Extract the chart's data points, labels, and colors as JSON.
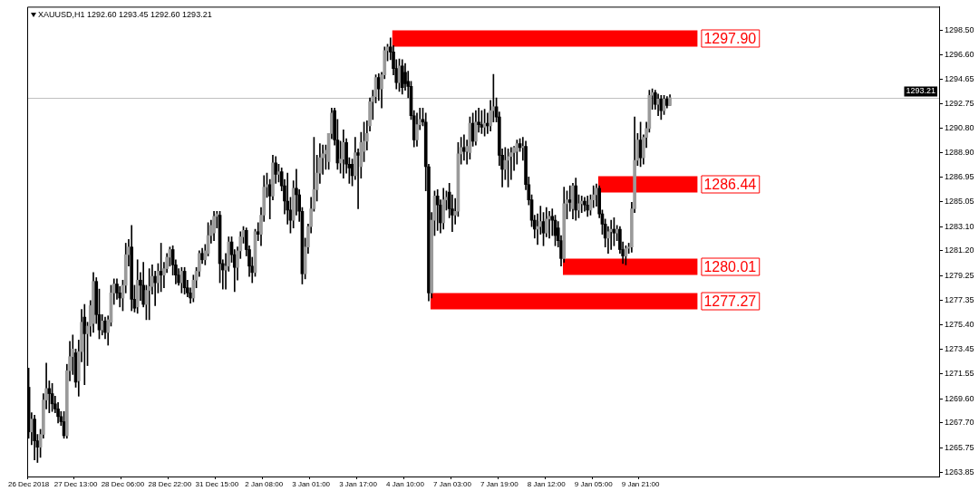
{
  "chart_data": {
    "type": "candlestick",
    "title": "XAUUSD,H1 1292.60 1293.45 1292.60 1293.21",
    "categories": [
      "26 Dec 2018",
      null,
      null,
      null,
      null,
      null,
      null,
      null,
      null,
      null,
      null,
      null,
      null,
      null,
      null,
      null,
      "27 Dec 13:00",
      null,
      null,
      null,
      null,
      null,
      null,
      null,
      null,
      null,
      null,
      null,
      null,
      null,
      null,
      null,
      "28 Dec 06:00",
      null,
      null,
      null,
      null,
      null,
      null,
      null,
      null,
      null,
      null,
      null,
      null,
      null,
      null,
      null,
      "28 Dec 22:00",
      null,
      null,
      null,
      null,
      null,
      null,
      null,
      null,
      null,
      null,
      null,
      null,
      null,
      null,
      null,
      "31 Dec 15:00",
      null,
      null,
      null,
      null,
      null,
      null,
      null,
      null,
      null,
      null,
      null,
      null,
      null,
      null,
      null,
      "2 Jan 08:00",
      null,
      null,
      null,
      null,
      null,
      null,
      null,
      null,
      null,
      null,
      null,
      null,
      null,
      null,
      null,
      "3 Jan 01:00",
      null,
      null,
      null,
      null,
      null,
      null,
      null,
      null,
      null,
      null,
      null,
      null,
      null,
      null,
      null,
      "3 Jan 17:00",
      null,
      null,
      null,
      null,
      null,
      null,
      null,
      null,
      null,
      null,
      null,
      null,
      null,
      null,
      null,
      "4 Jan 10:00",
      null,
      null,
      null,
      null,
      null,
      null,
      null,
      null,
      null,
      null,
      null,
      null,
      null,
      null,
      null,
      "7 Jan 03:00",
      null,
      null,
      null,
      null,
      null,
      null,
      null,
      null,
      null,
      null,
      null,
      null,
      null,
      null,
      null,
      "7 Jan 19:00",
      null,
      null,
      null,
      null,
      null,
      null,
      null,
      null,
      null,
      null,
      null,
      null,
      null,
      null,
      null,
      "8 Jan 12:00",
      null,
      null,
      null,
      null,
      null,
      null,
      null,
      null,
      null,
      null,
      null,
      null,
      null,
      null,
      null,
      "9 Jan 05:00",
      null,
      null,
      null,
      null,
      null,
      null,
      null,
      null,
      null,
      null,
      null,
      null,
      null,
      null,
      null,
      "9 Jan 21:00",
      null,
      null,
      null,
      null,
      null,
      null,
      null,
      null,
      null,
      null,
      null,
      null,
      null,
      null,
      null,
      null,
      null,
      null,
      null,
      null,
      null,
      null,
      null,
      null,
      null,
      null,
      null,
      null,
      null,
      null,
      null,
      null,
      null,
      null,
      null,
      null,
      null,
      null,
      null,
      null,
      null,
      null,
      null,
      null,
      null,
      null,
      null,
      null,
      null,
      null,
      null,
      null,
      null,
      null,
      null,
      null,
      null,
      null,
      null,
      null,
      null,
      null,
      null,
      null,
      null,
      null,
      null,
      null,
      null,
      null,
      null,
      null,
      null,
      null,
      null,
      null,
      null,
      null,
      null,
      null,
      null,
      null,
      null,
      null,
      null,
      null,
      null,
      null,
      null,
      null,
      null,
      null,
      null,
      null,
      null,
      null,
      null,
      null,
      null,
      null,
      null
    ],
    "ohlc": [
      [
        1270.5,
        1272,
        1266.5,
        1267
      ],
      [
        1267,
        1268.5,
        1266,
        1268
      ],
      [
        1268,
        1268.3,
        1264.8,
        1266.3
      ],
      [
        1266.3,
        1266.8,
        1264.6,
        1265.8
      ],
      [
        1265.8,
        1267.2,
        1265,
        1266.8
      ],
      [
        1266.8,
        1270,
        1266.5,
        1269.5
      ],
      [
        1269.5,
        1272.4,
        1268.8,
        1270.4
      ],
      [
        1270.4,
        1271,
        1268.5,
        1270
      ],
      [
        1270,
        1270.8,
        1268.6,
        1269.2
      ],
      [
        1269.2,
        1269.8,
        1268.5,
        1268.8
      ],
      [
        1268.8,
        1269.3,
        1267.7,
        1268.2
      ],
      [
        1268.2,
        1268.6,
        1267.5,
        1267.8
      ],
      [
        1267.8,
        1268.6,
        1266.5,
        1266.7
      ],
      [
        1266.7,
        1272.3,
        1266.5,
        1271.8
      ],
      [
        1271.8,
        1274.1,
        1271,
        1272.9
      ],
      [
        1272.9,
        1274.6,
        1271.5,
        1273.5
      ],
      [
        1273.2,
        1273.5,
        1270.5,
        1270.9
      ],
      [
        1271,
        1274.2,
        1269.8,
        1273.3
      ],
      [
        1273.3,
        1276.6,
        1272.5,
        1275.6
      ],
      [
        1276,
        1277,
        1270.7,
        1274.7
      ],
      [
        1274.7,
        1275.6,
        1272.2,
        1275.3
      ],
      [
        1275.3,
        1277.3,
        1274.5,
        1276.9
      ],
      [
        1275.5,
        1279.5,
        1274.8,
        1278.8
      ],
      [
        1278.8,
        1279.1,
        1275.5,
        1276.2
      ],
      [
        1276.2,
        1278.2,
        1274.3,
        1275
      ],
      [
        1275,
        1276.2,
        1274.6,
        1275.7
      ],
      [
        1275.7,
        1276,
        1274.3,
        1274.8
      ],
      [
        1274.8,
        1276.1,
        1273.8,
        1275.8
      ],
      [
        1275.6,
        1278.5,
        1275.3,
        1277.9
      ],
      [
        1277.9,
        1279,
        1277,
        1278.6
      ],
      [
        1278.6,
        1279,
        1277.4,
        1277.9
      ],
      [
        1277.9,
        1278.4,
        1276.8,
        1277.5
      ],
      [
        1277.5,
        1278.9,
        1276.5,
        1278.5
      ],
      [
        1278.5,
        1281.8,
        1277.9,
        1280.9
      ],
      [
        1280.9,
        1282.1,
        1280,
        1281.5
      ],
      [
        1281.5,
        1283.2,
        1276.5,
        1277.4
      ],
      [
        1277.4,
        1278.5,
        1276.4,
        1276.7
      ],
      [
        1276.8,
        1280.5,
        1276.3,
        1278.9
      ],
      [
        1278.9,
        1279.5,
        1277.3,
        1278.5
      ],
      [
        1278.5,
        1280.3,
        1276.8,
        1277
      ],
      [
        1277,
        1278.5,
        1275.8,
        1278.1
      ],
      [
        1278.1,
        1279.8,
        1275.8,
        1278.4
      ],
      [
        1278.4,
        1280.1,
        1277.8,
        1279.2
      ],
      [
        1279.2,
        1279.6,
        1276.9,
        1278.7
      ],
      [
        1278.7,
        1280.2,
        1277.9,
        1279.6
      ],
      [
        1279.6,
        1281.8,
        1278,
        1279.3
      ],
      [
        1279.3,
        1280.3,
        1278.3,
        1279.8
      ],
      [
        1279.8,
        1281,
        1279.5,
        1280.7
      ],
      [
        1280.7,
        1281.5,
        1280,
        1281.3
      ],
      [
        1281.3,
        1281.6,
        1279.3,
        1280.1
      ],
      [
        1280.1,
        1280.5,
        1278.6,
        1279.3
      ],
      [
        1279.3,
        1279.8,
        1278.5,
        1278.7
      ],
      [
        1278.7,
        1279.9,
        1277.9,
        1279.6
      ],
      [
        1279.6,
        1279.9,
        1277.8,
        1278.3
      ],
      [
        1278.3,
        1278.9,
        1277.6,
        1277.9
      ],
      [
        1277.9,
        1278.3,
        1277.1,
        1277.5
      ],
      [
        1277.5,
        1279.3,
        1277.2,
        1278.9
      ],
      [
        1278.9,
        1279.9,
        1278.3,
        1279.6
      ],
      [
        1279.6,
        1281.2,
        1279.2,
        1281
      ],
      [
        1281,
        1281.4,
        1280.2,
        1280.5
      ],
      [
        1280.5,
        1281.7,
        1280.1,
        1281.2
      ],
      [
        1281,
        1283.4,
        1280.8,
        1282.4
      ],
      [
        1282.4,
        1283.6,
        1281.8,
        1283.2
      ],
      [
        1282.6,
        1284.3,
        1282,
        1283.9
      ],
      [
        1283.9,
        1284.3,
        1283,
        1284.1
      ],
      [
        1284,
        1284.3,
        1278.7,
        1280.2
      ],
      [
        1280.2,
        1280.5,
        1278.2,
        1279.7
      ],
      [
        1279.7,
        1281,
        1278.2,
        1280
      ],
      [
        1280,
        1282.3,
        1279.6,
        1281.9
      ],
      [
        1281.9,
        1282.3,
        1280.3,
        1280.9
      ],
      [
        1280.9,
        1281.3,
        1278,
        1279.9
      ],
      [
        1279.9,
        1281.5,
        1278.9,
        1281.2
      ],
      [
        1281.2,
        1282.7,
        1280.6,
        1282.3
      ],
      [
        1282.3,
        1283.1,
        1281.8,
        1282.8
      ],
      [
        1282.8,
        1283,
        1280.8,
        1281.3
      ],
      [
        1281.3,
        1281.6,
        1279.2,
        1280
      ],
      [
        1280,
        1280.7,
        1278.7,
        1279.5
      ],
      [
        1279.5,
        1282.9,
        1279.2,
        1282.7
      ],
      [
        1282.7,
        1283.4,
        1282,
        1282.5
      ],
      [
        1282.5,
        1284.6,
        1281.6,
        1284
      ],
      [
        1284,
        1287.1,
        1283.5,
        1286.2
      ],
      [
        1286.2,
        1287.3,
        1285.4,
        1286.4
      ],
      [
        1286.4,
        1286.8,
        1283.7,
        1285.5
      ],
      [
        1285.5,
        1288.7,
        1285.2,
        1288.1
      ],
      [
        1288.1,
        1288.6,
        1286.5,
        1287.2
      ],
      [
        1287.2,
        1288,
        1286.6,
        1287.4
      ],
      [
        1287.4,
        1287.7,
        1285.9,
        1286.3
      ],
      [
        1286.3,
        1286.8,
        1284.1,
        1285.1
      ],
      [
        1285.1,
        1287.3,
        1283.3,
        1284.4
      ],
      [
        1284.4,
        1285.4,
        1282.6,
        1283.6
      ],
      [
        1283.6,
        1286.7,
        1283,
        1286.1
      ],
      [
        1286.1,
        1287.6,
        1284,
        1285.6
      ],
      [
        1285.6,
        1286,
        1283.5,
        1284.3
      ],
      [
        1284.3,
        1284.6,
        1278.6,
        1279.4
      ],
      [
        1279.4,
        1282.2,
        1279,
        1281.5
      ],
      [
        1281.5,
        1283.3,
        1281,
        1283.1
      ],
      [
        1283.1,
        1285.4,
        1282.6,
        1284.5
      ],
      [
        1284.5,
        1290.1,
        1284.3,
        1286
      ],
      [
        1286,
        1288.7,
        1285.1,
        1287.3
      ],
      [
        1287.3,
        1289.6,
        1286.5,
        1288.5
      ],
      [
        1288.5,
        1289.5,
        1287.2,
        1288.8
      ],
      [
        1288.8,
        1289.5,
        1287.6,
        1289.1
      ],
      [
        1288.2,
        1290.4,
        1287.6,
        1290.4
      ],
      [
        1290.4,
        1292.4,
        1290,
        1292
      ],
      [
        1292.2,
        1292.4,
        1289.5,
        1289.9
      ],
      [
        1289.9,
        1291.5,
        1287.6,
        1288.1
      ],
      [
        1288.1,
        1289.8,
        1287.3,
        1288.4
      ],
      [
        1288.4,
        1290.7,
        1286.9,
        1289.7
      ],
      [
        1289.7,
        1290,
        1287.3,
        1288
      ],
      [
        1288,
        1288.5,
        1286.5,
        1287.7
      ],
      [
        1288,
        1288.4,
        1286.3,
        1287.1
      ],
      [
        1287.1,
        1290.1,
        1286.8,
        1288.9
      ],
      [
        1288.9,
        1289.2,
        1284.5,
        1288.7
      ],
      [
        1287.8,
        1290.5,
        1286.9,
        1289.7
      ],
      [
        1289,
        1291.3,
        1288.2,
        1289.8
      ],
      [
        1289.8,
        1291.4,
        1289.1,
        1290.4
      ],
      [
        1291,
        1293.2,
        1290.6,
        1292.9
      ],
      [
        1292.9,
        1293.8,
        1291.5,
        1293.3
      ],
      [
        1293.3,
        1295,
        1292.8,
        1294.8
      ],
      [
        1294.8,
        1295.1,
        1293,
        1293.9
      ],
      [
        1293.9,
        1295.2,
        1292.4,
        1295
      ],
      [
        1295,
        1297.2,
        1294.7,
        1296.9
      ],
      [
        1296.9,
        1297.4,
        1296.1,
        1297.2
      ],
      [
        1297.2,
        1297.9,
        1296.2,
        1296.8
      ],
      [
        1296.8,
        1297.3,
        1295,
        1295.5
      ],
      [
        1295.5,
        1296.2,
        1293.9,
        1294.4
      ],
      [
        1294.4,
        1296.25,
        1293.7,
        1295.7
      ],
      [
        1295.7,
        1296.2,
        1293.5,
        1294
      ],
      [
        1295.2,
        1295.9,
        1293.8,
        1294.3
      ],
      [
        1294.5,
        1295.3,
        1293.2,
        1294.1
      ],
      [
        1294.1,
        1294.5,
        1291.5,
        1291.8
      ],
      [
        1291.8,
        1292.2,
        1289.35,
        1289.9
      ],
      [
        1289.9,
        1292,
        1289.4,
        1291.1
      ],
      [
        1291.1,
        1292.4,
        1290.7,
        1291.5
      ],
      [
        1291.5,
        1292.4,
        1291,
        1291.3
      ],
      [
        1291.3,
        1292,
        1285.9,
        1287.8
      ],
      [
        1287.8,
        1288,
        1277.27,
        1277.9
      ],
      [
        1277.9,
        1284.2,
        1277.5,
        1283.6
      ],
      [
        1283.6,
        1285.9,
        1282.4,
        1285.5
      ],
      [
        1285.5,
        1286,
        1282.8,
        1284.8
      ],
      [
        1284.8,
        1285.2,
        1282.6,
        1283.4
      ],
      [
        1283.4,
        1286.1,
        1282.9,
        1285.2
      ],
      [
        1285.2,
        1285.9,
        1284.4,
        1285.4
      ],
      [
        1285.8,
        1286.5,
        1283.8,
        1284.5
      ],
      [
        1284.5,
        1285.6,
        1282.7,
        1284
      ],
      [
        1284,
        1285.3,
        1283.3,
        1284.3
      ],
      [
        1284.3,
        1289.7,
        1283.9,
        1288.8
      ],
      [
        1288.8,
        1290.1,
        1288,
        1289.3
      ],
      [
        1289.3,
        1290.3,
        1288.3,
        1289
      ],
      [
        1289,
        1289.9,
        1288,
        1289.4
      ],
      [
        1288.9,
        1291.7,
        1288.4,
        1291.2
      ],
      [
        1291.2,
        1292,
        1289.4,
        1289.8
      ],
      [
        1289.8,
        1292.2,
        1289.5,
        1291.3
      ],
      [
        1291.3,
        1292.4,
        1290.5,
        1291.1
      ],
      [
        1291.1,
        1292.2,
        1290.4,
        1290.9
      ],
      [
        1290.9,
        1292.3,
        1290.2,
        1291.2
      ],
      [
        1291.2,
        1292,
        1290.4,
        1291
      ],
      [
        1291,
        1293,
        1290.6,
        1292.2
      ],
      [
        1292.2,
        1295.05,
        1291.3,
        1292.5
      ],
      [
        1292.5,
        1293.2,
        1291.3,
        1291.7
      ],
      [
        1291.7,
        1292.1,
        1287.9,
        1288.7
      ],
      [
        1288.7,
        1289.2,
        1286.2,
        1287.6
      ],
      [
        1287.6,
        1289.3,
        1286.8,
        1288.3
      ],
      [
        1288.3,
        1289.2,
        1286.2,
        1288.6
      ],
      [
        1288.6,
        1289.3,
        1286.8,
        1288.9
      ],
      [
        1288.9,
        1289.4,
        1287.5,
        1289.3
      ],
      [
        1289,
        1289.9,
        1288,
        1289.6
      ],
      [
        1289.6,
        1290,
        1289,
        1289.3
      ],
      [
        1289.3,
        1290.1,
        1288.3,
        1289.4
      ],
      [
        1289.4,
        1289.8,
        1286,
        1286.4
      ],
      [
        1286.4,
        1287,
        1284.8,
        1285.2
      ],
      [
        1285.2,
        1285.6,
        1283.1,
        1283.6
      ],
      [
        1283.6,
        1284,
        1282.2,
        1282.9
      ],
      [
        1282.9,
        1284.1,
        1281.7,
        1283.1
      ],
      [
        1283.1,
        1284.7,
        1282.5,
        1283.5
      ],
      [
        1283.5,
        1284.2,
        1281.6,
        1282.6
      ],
      [
        1282.6,
        1284.6,
        1282.3,
        1283.7
      ],
      [
        1283.7,
        1284.3,
        1282.2,
        1283.9
      ],
      [
        1283.9,
        1284.5,
        1282.4,
        1283.6
      ],
      [
        1283.6,
        1284,
        1281.6,
        1282.4
      ],
      [
        1283,
        1283.5,
        1281.5,
        1282
      ],
      [
        1282,
        1282.4,
        1280.01,
        1280.6
      ],
      [
        1280.6,
        1286.2,
        1280.3,
        1284.9
      ],
      [
        1284.9,
        1285.9,
        1283.7,
        1285.2
      ],
      [
        1285.2,
        1286.3,
        1284.3,
        1285
      ],
      [
        1284.5,
        1286.5,
        1283.7,
        1286.3
      ],
      [
        1286.3,
        1286.9,
        1283.6,
        1284.4
      ],
      [
        1284.4,
        1285.6,
        1283.8,
        1284.9
      ],
      [
        1284.9,
        1285.5,
        1284.2,
        1285.1
      ],
      [
        1285.1,
        1285.4,
        1284.3,
        1284.8
      ],
      [
        1284.8,
        1285.5,
        1283.9,
        1284.4
      ],
      [
        1284.4,
        1285.6,
        1284,
        1285.2
      ],
      [
        1285.2,
        1286.3,
        1284.6,
        1285.6
      ],
      [
        1285.6,
        1286.44,
        1284.7,
        1286.1
      ],
      [
        1286.1,
        1286.3,
        1283.8,
        1284.1
      ],
      [
        1284.1,
        1284.4,
        1282.5,
        1283.3
      ],
      [
        1283.3,
        1283.7,
        1281.5,
        1282.2
      ],
      [
        1282.2,
        1283.1,
        1281,
        1282.7
      ],
      [
        1282.7,
        1283.6,
        1281.3,
        1282.9
      ],
      [
        1282.9,
        1283.8,
        1281.6,
        1282.6
      ],
      [
        1282.6,
        1283.2,
        1282,
        1282.9
      ],
      [
        1282.9,
        1283.1,
        1281,
        1281.3
      ],
      [
        1281.3,
        1281.9,
        1280.2,
        1280.8
      ],
      [
        1280.8,
        1281.6,
        1280.1,
        1281.4
      ],
      [
        1281.4,
        1281.8,
        1281,
        1281.5
      ],
      [
        1281.5,
        1285,
        1281.1,
        1284.5
      ],
      [
        1284.5,
        1291.7,
        1284.2,
        1288.3
      ],
      [
        1288.3,
        1290.4,
        1287.9,
        1289.9
      ],
      [
        1289.9,
        1291.3,
        1287.8,
        1288.5
      ],
      [
        1288.5,
        1290.3,
        1288,
        1290.1
      ],
      [
        1290.1,
        1291.3,
        1289.3,
        1290.8
      ],
      [
        1290.8,
        1293.8,
        1290.5,
        1293.4
      ],
      [
        1293.4,
        1293.9,
        1292.3,
        1293.6
      ],
      [
        1293.6,
        1293.8,
        1292.3,
        1292.7
      ],
      [
        1292.7,
        1293.5,
        1291.8,
        1293.1
      ],
      [
        1293.1,
        1293.4,
        1291.5,
        1292.2
      ],
      [
        1292.2,
        1293.4,
        1291.9,
        1293.1
      ],
      [
        1293.1,
        1293.3,
        1292.4,
        1292.6
      ],
      [
        1292.6,
        1293.45,
        1292.6,
        1293.21
      ],
      null,
      null,
      null,
      null,
      null,
      null,
      null,
      null,
      null,
      null,
      null,
      null,
      null,
      null,
      null,
      null,
      null,
      null,
      null,
      null,
      null,
      null,
      null,
      null,
      null,
      null,
      null,
      null,
      null,
      null,
      null,
      null,
      null,
      null,
      null,
      null,
      null,
      null,
      null,
      null,
      null,
      null,
      null,
      null,
      null,
      null,
      null,
      null,
      null,
      null,
      null,
      null,
      null,
      null,
      null,
      null,
      null,
      null,
      null,
      null,
      null,
      null,
      null,
      null,
      null,
      null,
      null,
      null,
      null,
      null,
      null,
      null,
      null,
      null,
      null,
      null,
      null,
      null,
      null,
      null,
      null,
      null,
      null,
      null,
      null,
      null,
      null,
      null,
      null,
      null,
      null
    ],
    "ylim": [
      1263.5,
      1300.35
    ],
    "yticks": [
      {
        "value": 1263.85,
        "label": "1263.85"
      },
      {
        "value": 1265.75,
        "label": "1265.75"
      },
      {
        "value": 1267.7,
        "label": "1267.70"
      },
      {
        "value": 1269.6,
        "label": "1269.60"
      },
      {
        "value": 1271.55,
        "label": "1271.55"
      },
      {
        "value": 1273.45,
        "label": "1273.45"
      },
      {
        "value": 1275.4,
        "label": "1275.40"
      },
      {
        "value": 1277.35,
        "label": "1277.35"
      },
      {
        "value": 1279.25,
        "label": "1279.25"
      },
      {
        "value": 1281.2,
        "label": "1281.20"
      },
      {
        "value": 1283.1,
        "label": "1283.10"
      },
      {
        "value": 1285.05,
        "label": "1285.05"
      },
      {
        "value": 1286.95,
        "label": "1286.95"
      },
      {
        "value": 1288.9,
        "label": "1288.90"
      },
      {
        "value": 1290.8,
        "label": "1290.80"
      },
      {
        "value": 1292.75,
        "label": "1292.75"
      },
      {
        "value": 1294.65,
        "label": "1294.65"
      },
      {
        "value": 1296.6,
        "label": "1296.60"
      },
      {
        "value": 1298.5,
        "label": "1298.50"
      }
    ],
    "ref_lines": [
      {
        "axis": "y",
        "value": 1297.9,
        "label": "1297.90",
        "color": "#ff0000"
      },
      {
        "axis": "y",
        "value": 1286.44,
        "label": "1286.44",
        "color": "#ff0000"
      },
      {
        "axis": "y",
        "value": 1280.01,
        "label": "1280.01",
        "color": "#ff0000"
      },
      {
        "axis": "y",
        "value": 1277.27,
        "label": "1277.27",
        "color": "#ff0000"
      },
      {
        "axis": "y",
        "value": 1293.21,
        "label": "1293.21",
        "color": "#c0c0c0",
        "line_style": "solid"
      }
    ]
  }
}
